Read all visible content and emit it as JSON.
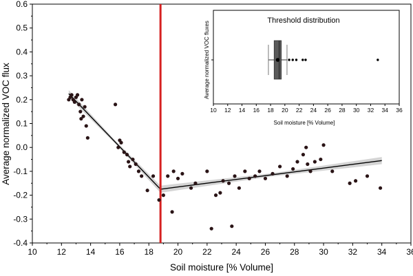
{
  "chart_data": [
    {
      "type": "scatter",
      "xlabel": "Soil moisture [% Volume]",
      "ylabel": "Average normalized VOC flux",
      "xlim": [
        10,
        36
      ],
      "ylim": [
        -0.4,
        0.6
      ],
      "x_ticks": [
        10,
        12,
        14,
        16,
        18,
        20,
        22,
        24,
        26,
        28,
        30,
        32,
        34,
        36
      ],
      "y_ticks": [
        -0.4,
        -0.3,
        -0.2,
        -0.1,
        0.0,
        0.1,
        0.2,
        0.3,
        0.4,
        0.5,
        0.6
      ],
      "y_tick_labels": [
        "-0.4",
        "-0.3",
        "-0.2",
        "-0.1",
        "0.0",
        "0.1",
        "0.2",
        "0.3",
        "0.4",
        "0.5",
        "0.6"
      ],
      "threshold_x": 18.8,
      "threshold_color": "#d62020",
      "point_color": "#2a1416",
      "fit_segments": [
        {
          "x": [
            12.5,
            18.8
          ],
          "y": [
            0.225,
            -0.175
          ]
        },
        {
          "x": [
            18.8,
            34.0
          ],
          "y": [
            -0.175,
            -0.055
          ]
        }
      ],
      "points": [
        [
          12.5,
          0.2
        ],
        [
          12.6,
          0.21
        ],
        [
          12.7,
          0.22
        ],
        [
          12.8,
          0.2
        ],
        [
          12.9,
          0.19
        ],
        [
          13.0,
          0.21
        ],
        [
          13.1,
          0.22
        ],
        [
          13.2,
          0.18
        ],
        [
          13.3,
          0.15
        ],
        [
          13.35,
          0.12
        ],
        [
          13.4,
          0.2
        ],
        [
          13.5,
          0.13
        ],
        [
          13.6,
          0.17
        ],
        [
          13.7,
          0.09
        ],
        [
          13.8,
          0.04
        ],
        [
          15.7,
          0.18
        ],
        [
          15.9,
          0.0
        ],
        [
          16.0,
          0.03
        ],
        [
          16.1,
          0.02
        ],
        [
          16.3,
          -0.02
        ],
        [
          16.5,
          -0.03
        ],
        [
          16.6,
          -0.06
        ],
        [
          16.7,
          -0.08
        ],
        [
          16.9,
          -0.05
        ],
        [
          17.1,
          -0.07
        ],
        [
          17.3,
          -0.1
        ],
        [
          17.5,
          -0.12
        ],
        [
          17.9,
          -0.18
        ],
        [
          18.3,
          -0.12
        ],
        [
          18.7,
          -0.22
        ],
        [
          19.0,
          -0.2
        ],
        [
          19.3,
          -0.12
        ],
        [
          19.6,
          -0.27
        ],
        [
          19.7,
          -0.1
        ],
        [
          20.0,
          -0.13
        ],
        [
          20.3,
          -0.11
        ],
        [
          20.9,
          -0.17
        ],
        [
          21.2,
          -0.15
        ],
        [
          22.0,
          -0.1
        ],
        [
          22.3,
          -0.34
        ],
        [
          22.6,
          -0.2
        ],
        [
          22.9,
          -0.19
        ],
        [
          23.1,
          -0.14
        ],
        [
          23.5,
          -0.15
        ],
        [
          23.7,
          -0.33
        ],
        [
          23.9,
          -0.12
        ],
        [
          24.2,
          -0.17
        ],
        [
          24.6,
          -0.1
        ],
        [
          24.9,
          -0.13
        ],
        [
          25.3,
          -0.12
        ],
        [
          25.6,
          -0.1
        ],
        [
          26.0,
          -0.13
        ],
        [
          26.5,
          -0.11
        ],
        [
          27.0,
          -0.08
        ],
        [
          27.5,
          -0.12
        ],
        [
          27.9,
          -0.09
        ],
        [
          28.2,
          -0.06
        ],
        [
          28.6,
          -0.03
        ],
        [
          28.8,
          0.0
        ],
        [
          28.9,
          -0.07
        ],
        [
          29.1,
          -0.1
        ],
        [
          29.4,
          -0.06
        ],
        [
          29.8,
          -0.05
        ],
        [
          30.0,
          0.01
        ],
        [
          30.6,
          -0.1
        ],
        [
          31.8,
          -0.15
        ],
        [
          32.2,
          -0.14
        ],
        [
          33.0,
          -0.12
        ],
        [
          33.9,
          -0.17
        ]
      ]
    },
    {
      "type": "boxplot",
      "title": "Threshold distribution",
      "xlabel": "Soil moisture [% Volume]",
      "ylabel": "Average normalized VOC fluxes",
      "xlim": [
        10,
        36
      ],
      "x_ticks": [
        10,
        12,
        14,
        16,
        18,
        20,
        22,
        24,
        26,
        28,
        30,
        32,
        34,
        36
      ],
      "box": {
        "whisker_low": 17.7,
        "q1": 18.5,
        "median": 19.2,
        "q3": 19.5,
        "whisker_high": 20.3
      },
      "mean": 19.0,
      "outliers": [
        20.6,
        21.1,
        21.6,
        22.5,
        22.9,
        33.0
      ],
      "box_color": "#5a5a5a"
    }
  ]
}
